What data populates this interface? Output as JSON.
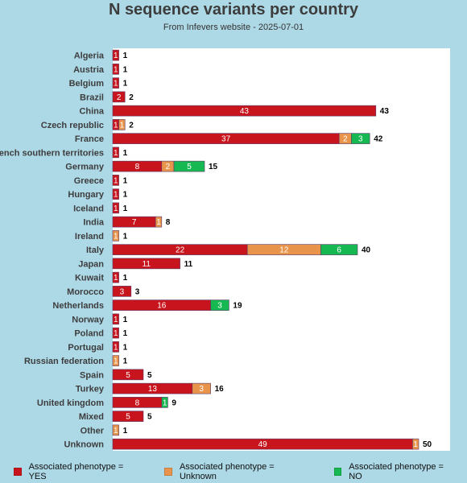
{
  "chart_data": {
    "type": "bar",
    "orientation": "horizontal",
    "stacked": true,
    "title": "N sequence variants per country",
    "subtitle": "From Infevers website - 2025-07-01",
    "categories": [
      "Algeria",
      "Austria",
      "Belgium",
      "Brazil",
      "China",
      "Czech republic",
      "France",
      "French southern territories",
      "Germany",
      "Greece",
      "Hungary",
      "Iceland",
      "India",
      "Ireland",
      "Italy",
      "Japan",
      "Kuwait",
      "Morocco",
      "Netherlands",
      "Norway",
      "Poland",
      "Portugal",
      "Russian federation",
      "Spain",
      "Turkey",
      "United kingdom",
      "Mixed",
      "Other",
      "Unknown"
    ],
    "series": [
      {
        "name": "Associated phenotype = YES",
        "color": "#c8141c",
        "values": [
          1,
          1,
          1,
          2,
          43,
          1,
          37,
          1,
          8,
          1,
          1,
          1,
          7,
          0,
          22,
          11,
          1,
          3,
          16,
          1,
          1,
          1,
          0,
          5,
          13,
          8,
          5,
          0,
          49
        ]
      },
      {
        "name": "Associated phenotype = Unknown",
        "color": "#e8944a",
        "values": [
          0,
          0,
          0,
          0,
          0,
          1,
          2,
          0,
          2,
          0,
          0,
          0,
          1,
          1,
          12,
          0,
          0,
          0,
          0,
          0,
          0,
          0,
          1,
          0,
          3,
          0,
          0,
          1,
          1
        ]
      },
      {
        "name": "Associated phenotype = NO",
        "color": "#16b851",
        "values": [
          0,
          0,
          0,
          0,
          0,
          0,
          3,
          0,
          5,
          0,
          0,
          0,
          0,
          0,
          6,
          0,
          0,
          0,
          3,
          0,
          0,
          0,
          0,
          0,
          0,
          1,
          0,
          0,
          0
        ]
      }
    ],
    "totals": [
      1,
      1,
      1,
      2,
      43,
      2,
      42,
      1,
      15,
      1,
      1,
      1,
      8,
      1,
      40,
      11,
      1,
      3,
      19,
      1,
      1,
      1,
      1,
      5,
      16,
      9,
      5,
      1,
      50
    ],
    "xlim": [
      0,
      55
    ],
    "grid": false,
    "legend_position": "bottom"
  }
}
